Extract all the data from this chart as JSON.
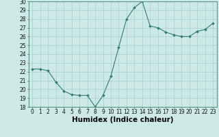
{
  "x": [
    0,
    1,
    2,
    3,
    4,
    5,
    6,
    7,
    8,
    9,
    10,
    11,
    12,
    13,
    14,
    15,
    16,
    17,
    18,
    19,
    20,
    21,
    22,
    23
  ],
  "y": [
    22.3,
    22.3,
    22.1,
    20.8,
    19.8,
    19.4,
    19.3,
    19.3,
    18.0,
    19.3,
    21.5,
    24.8,
    28.0,
    29.3,
    30.0,
    27.2,
    27.0,
    26.5,
    26.2,
    26.0,
    26.0,
    26.6,
    26.8,
    27.5
  ],
  "xlabel": "Humidex (Indice chaleur)",
  "ylim": [
    18,
    30
  ],
  "yticks": [
    18,
    19,
    20,
    21,
    22,
    23,
    24,
    25,
    26,
    27,
    28,
    29,
    30
  ],
  "xticks": [
    0,
    1,
    2,
    3,
    4,
    5,
    6,
    7,
    8,
    9,
    10,
    11,
    12,
    13,
    14,
    15,
    16,
    17,
    18,
    19,
    20,
    21,
    22,
    23
  ],
  "line_color": "#2e7d6e",
  "marker_color": "#2e7d6e",
  "bg_color": "#cce9e5",
  "grid_color": "#aacfcb",
  "tick_label_fontsize": 5.5,
  "xlabel_fontsize": 7.5
}
